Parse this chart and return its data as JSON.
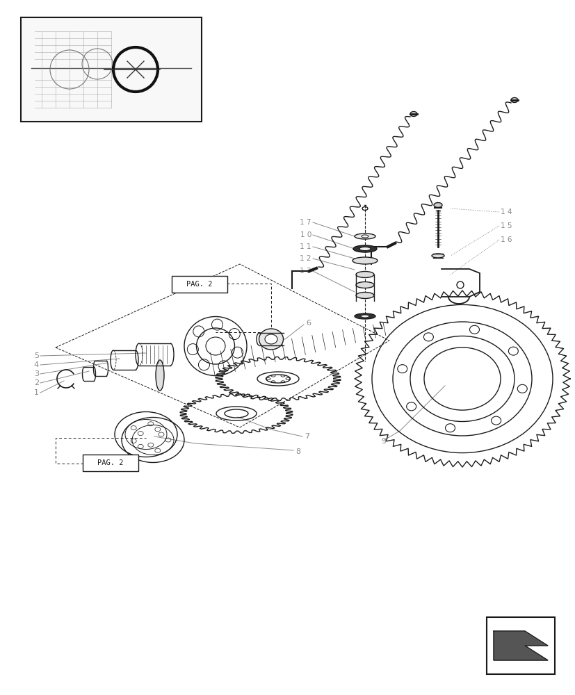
{
  "bg_color": "#ffffff",
  "line_color": "#1a1a1a",
  "label_color": "#888888",
  "fig_width": 8.28,
  "fig_height": 10.0,
  "dpi": 100
}
